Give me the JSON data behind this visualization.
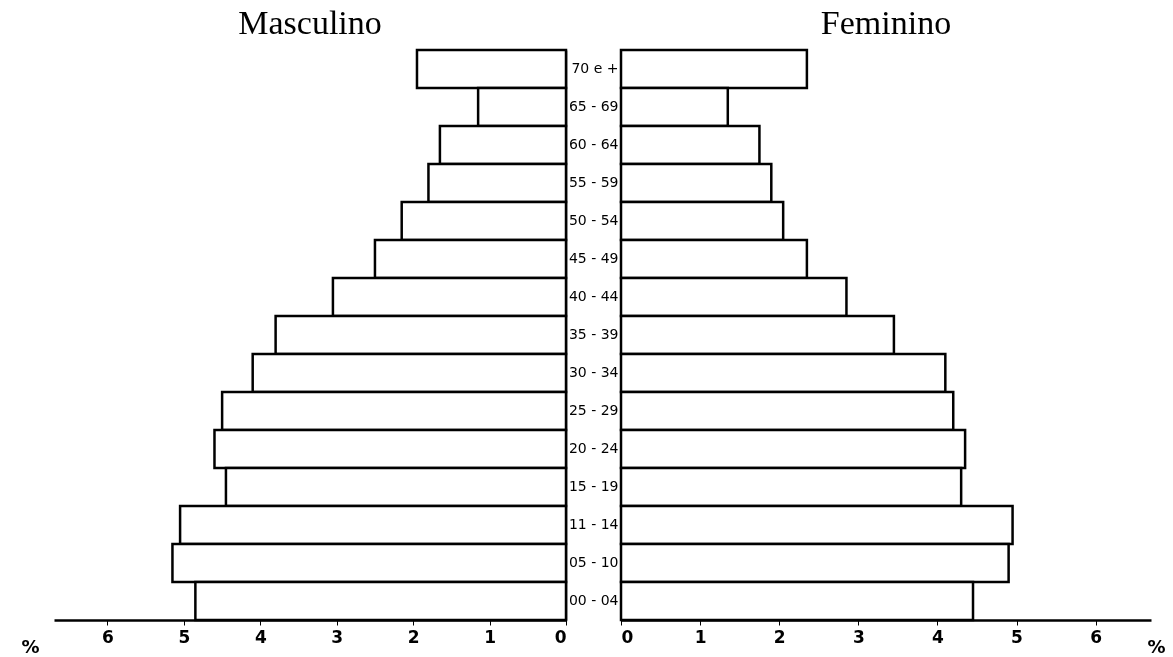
{
  "chart_data": [
    {
      "type": "bar",
      "orientation": "horizontal",
      "title": "Masculino",
      "xlabel": "%",
      "values": [
        1.95,
        1.15,
        1.65,
        1.8,
        2.15,
        2.5,
        3.05,
        3.8,
        4.1,
        4.5,
        4.6,
        4.45,
        5.05,
        5.15,
        4.85
      ],
      "color": "#ffffff",
      "xlim": [
        6.7,
        0
      ],
      "xticks": [
        6,
        5,
        4,
        3,
        2,
        1,
        0
      ],
      "tick_labels": "x",
      "grid": false
    },
    {
      "type": "bar",
      "orientation": "horizontal",
      "title": "Feminino",
      "xlabel": "%",
      "categories": [
        "70 e +",
        "65 - 69",
        "60 - 64",
        "55 - 59",
        "50 - 54",
        "45 - 49",
        "40 - 44",
        "35 - 39",
        "30 - 34",
        "25 - 29",
        "20 - 24",
        "15 - 19",
        "11 - 14",
        "05 - 10",
        "00 - 04"
      ],
      "values": [
        2.35,
        1.35,
        1.75,
        1.9,
        2.05,
        2.35,
        2.85,
        3.45,
        4.1,
        4.2,
        4.35,
        4.3,
        4.95,
        4.9,
        4.45
      ],
      "color": "#ffffff",
      "xlim": [
        0,
        6.7
      ],
      "xticks": [
        0,
        1,
        2,
        3,
        4,
        5,
        6
      ],
      "grid": false
    }
  ]
}
